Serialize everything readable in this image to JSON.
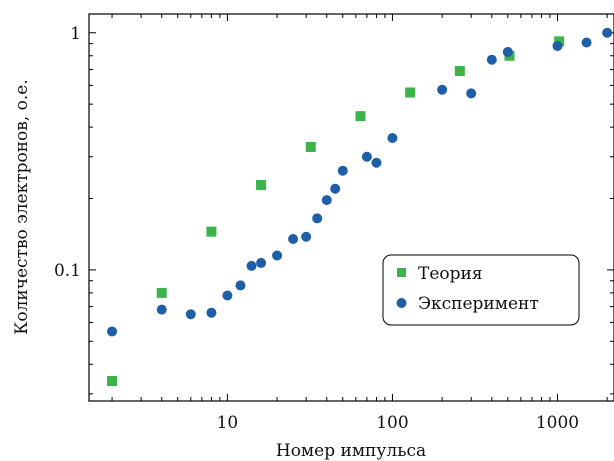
{
  "chart_data": {
    "type": "scatter",
    "title": "",
    "xlabel": "Номер импульса",
    "ylabel": "Количество электронов, о.е.",
    "xscale": "log",
    "yscale": "log",
    "xlim": [
      1.45,
      2200
    ],
    "ylim": [
      0.028,
      1.2
    ],
    "xticks": [
      10,
      100,
      1000
    ],
    "xtick_labels": [
      "10",
      "100",
      "1000"
    ],
    "yticks": [
      0.1,
      1
    ],
    "ytick_labels": [
      "0.1",
      "1"
    ],
    "grid": false,
    "legend_position": "center-right",
    "series": [
      {
        "name": "Теория",
        "marker": "square",
        "color": "#3cb44b",
        "x": [
          2,
          4,
          8,
          16,
          32,
          64,
          128,
          256,
          512,
          1024
        ],
        "y": [
          0.034,
          0.08,
          0.145,
          0.228,
          0.33,
          0.445,
          0.56,
          0.69,
          0.8,
          0.92
        ]
      },
      {
        "name": "Эксперимент",
        "marker": "circle",
        "color": "#1f5fa8",
        "x": [
          2,
          4,
          6,
          8,
          10,
          12,
          14,
          16,
          20,
          25,
          30,
          35,
          40,
          45,
          50,
          70,
          80,
          100,
          200,
          300,
          400,
          500,
          1000,
          1500,
          2000
        ],
        "y": [
          0.055,
          0.068,
          0.065,
          0.066,
          0.078,
          0.086,
          0.104,
          0.107,
          0.115,
          0.135,
          0.138,
          0.165,
          0.197,
          0.22,
          0.262,
          0.3,
          0.283,
          0.36,
          0.575,
          0.555,
          0.77,
          0.83,
          0.88,
          0.91,
          1.0
        ]
      }
    ]
  }
}
